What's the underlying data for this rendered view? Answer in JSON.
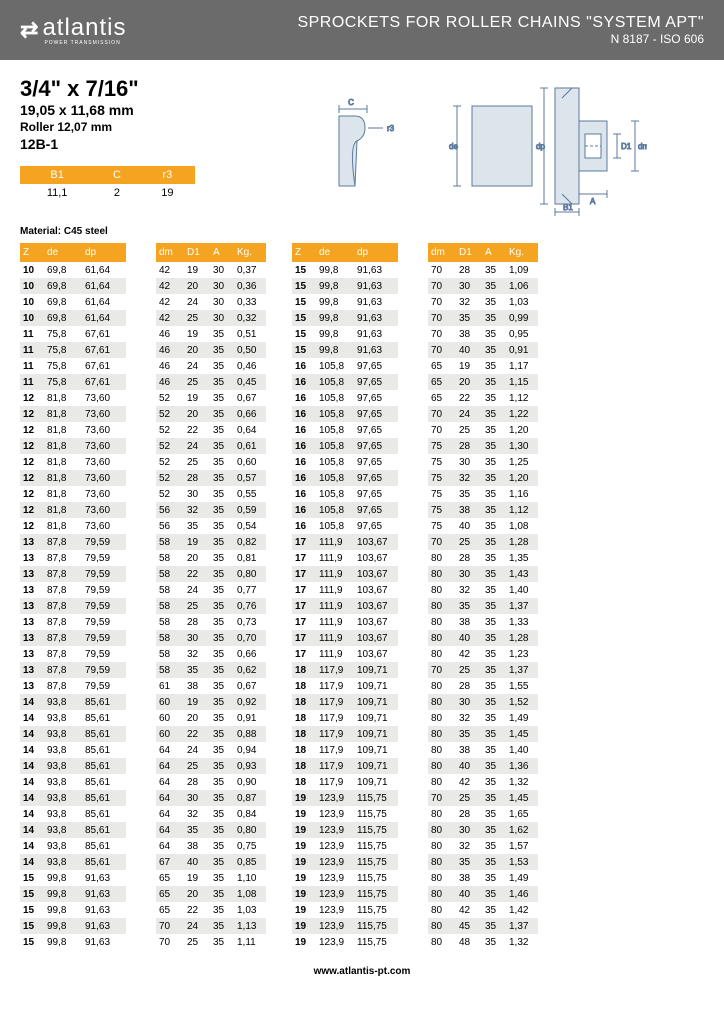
{
  "header": {
    "brand": "atlantis",
    "brand_sub": "POWER TRANSMISSION",
    "title": "SPROCKETS FOR ROLLER CHAINS \"SYSTEM APT\"",
    "subtitle": "N 8187 - ISO 606"
  },
  "specs": {
    "main": "3/4\" x 7/16\"",
    "sub": "19,05 x 11,68 mm",
    "roller": "Roller 12,07 mm",
    "code": "12B-1",
    "mini_headers": [
      "B1",
      "C",
      "r3"
    ],
    "mini_values": [
      "11,1",
      "2",
      "19"
    ],
    "material": "Material: C45 steel"
  },
  "dim_labels": {
    "c": "C",
    "r3": "r3",
    "de": "de",
    "dp": "dp",
    "d1": "D1",
    "dm": "dm",
    "b1": "B1",
    "a": "A"
  },
  "headers": [
    "Z",
    "de",
    "dp",
    "dm",
    "D1",
    "A",
    "Kg."
  ],
  "left": [
    [
      "10",
      "69,8",
      "61,64",
      "42",
      "19",
      "30",
      "0,37"
    ],
    [
      "10",
      "69,8",
      "61,64",
      "42",
      "20",
      "30",
      "0,36"
    ],
    [
      "10",
      "69,8",
      "61,64",
      "42",
      "24",
      "30",
      "0,33"
    ],
    [
      "10",
      "69,8",
      "61,64",
      "42",
      "25",
      "30",
      "0,32"
    ],
    [
      "11",
      "75,8",
      "67,61",
      "46",
      "19",
      "35",
      "0,51"
    ],
    [
      "11",
      "75,8",
      "67,61",
      "46",
      "20",
      "35",
      "0,50"
    ],
    [
      "11",
      "75,8",
      "67,61",
      "46",
      "24",
      "35",
      "0,46"
    ],
    [
      "11",
      "75,8",
      "67,61",
      "46",
      "25",
      "35",
      "0,45"
    ],
    [
      "12",
      "81,8",
      "73,60",
      "52",
      "19",
      "35",
      "0,67"
    ],
    [
      "12",
      "81,8",
      "73,60",
      "52",
      "20",
      "35",
      "0,66"
    ],
    [
      "12",
      "81,8",
      "73,60",
      "52",
      "22",
      "35",
      "0,64"
    ],
    [
      "12",
      "81,8",
      "73,60",
      "52",
      "24",
      "35",
      "0,61"
    ],
    [
      "12",
      "81,8",
      "73,60",
      "52",
      "25",
      "35",
      "0,60"
    ],
    [
      "12",
      "81,8",
      "73,60",
      "52",
      "28",
      "35",
      "0,57"
    ],
    [
      "12",
      "81,8",
      "73,60",
      "52",
      "30",
      "35",
      "0,55"
    ],
    [
      "12",
      "81,8",
      "73,60",
      "56",
      "32",
      "35",
      "0,59"
    ],
    [
      "12",
      "81,8",
      "73,60",
      "56",
      "35",
      "35",
      "0,54"
    ],
    [
      "13",
      "87,8",
      "79,59",
      "58",
      "19",
      "35",
      "0,82"
    ],
    [
      "13",
      "87,8",
      "79,59",
      "58",
      "20",
      "35",
      "0,81"
    ],
    [
      "13",
      "87,8",
      "79,59",
      "58",
      "22",
      "35",
      "0,80"
    ],
    [
      "13",
      "87,8",
      "79,59",
      "58",
      "24",
      "35",
      "0,77"
    ],
    [
      "13",
      "87,8",
      "79,59",
      "58",
      "25",
      "35",
      "0,76"
    ],
    [
      "13",
      "87,8",
      "79,59",
      "58",
      "28",
      "35",
      "0,73"
    ],
    [
      "13",
      "87,8",
      "79,59",
      "58",
      "30",
      "35",
      "0,70"
    ],
    [
      "13",
      "87,8",
      "79,59",
      "58",
      "32",
      "35",
      "0,66"
    ],
    [
      "13",
      "87,8",
      "79,59",
      "58",
      "35",
      "35",
      "0,62"
    ],
    [
      "13",
      "87,8",
      "79,59",
      "61",
      "38",
      "35",
      "0,67"
    ],
    [
      "14",
      "93,8",
      "85,61",
      "60",
      "19",
      "35",
      "0,92"
    ],
    [
      "14",
      "93,8",
      "85,61",
      "60",
      "20",
      "35",
      "0,91"
    ],
    [
      "14",
      "93,8",
      "85,61",
      "60",
      "22",
      "35",
      "0,88"
    ],
    [
      "14",
      "93,8",
      "85,61",
      "64",
      "24",
      "35",
      "0,94"
    ],
    [
      "14",
      "93,8",
      "85,61",
      "64",
      "25",
      "35",
      "0,93"
    ],
    [
      "14",
      "93,8",
      "85,61",
      "64",
      "28",
      "35",
      "0,90"
    ],
    [
      "14",
      "93,8",
      "85,61",
      "64",
      "30",
      "35",
      "0,87"
    ],
    [
      "14",
      "93,8",
      "85,61",
      "64",
      "32",
      "35",
      "0,84"
    ],
    [
      "14",
      "93,8",
      "85,61",
      "64",
      "35",
      "35",
      "0,80"
    ],
    [
      "14",
      "93,8",
      "85,61",
      "64",
      "38",
      "35",
      "0,75"
    ],
    [
      "14",
      "93,8",
      "85,61",
      "67",
      "40",
      "35",
      "0,85"
    ],
    [
      "15",
      "99,8",
      "91,63",
      "65",
      "19",
      "35",
      "1,10"
    ],
    [
      "15",
      "99,8",
      "91,63",
      "65",
      "20",
      "35",
      "1,08"
    ],
    [
      "15",
      "99,8",
      "91,63",
      "65",
      "22",
      "35",
      "1,03"
    ],
    [
      "15",
      "99,8",
      "91,63",
      "70",
      "24",
      "35",
      "1,13"
    ],
    [
      "15",
      "99,8",
      "91,63",
      "70",
      "25",
      "35",
      "1,11"
    ]
  ],
  "right": [
    [
      "15",
      "99,8",
      "91,63",
      "70",
      "28",
      "35",
      "1,09"
    ],
    [
      "15",
      "99,8",
      "91,63",
      "70",
      "30",
      "35",
      "1,06"
    ],
    [
      "15",
      "99,8",
      "91,63",
      "70",
      "32",
      "35",
      "1,03"
    ],
    [
      "15",
      "99,8",
      "91,63",
      "70",
      "35",
      "35",
      "0,99"
    ],
    [
      "15",
      "99,8",
      "91,63",
      "70",
      "38",
      "35",
      "0,95"
    ],
    [
      "15",
      "99,8",
      "91,63",
      "70",
      "40",
      "35",
      "0,91"
    ],
    [
      "16",
      "105,8",
      "97,65",
      "65",
      "19",
      "35",
      "1,17"
    ],
    [
      "16",
      "105,8",
      "97,65",
      "65",
      "20",
      "35",
      "1,15"
    ],
    [
      "16",
      "105,8",
      "97,65",
      "65",
      "22",
      "35",
      "1,12"
    ],
    [
      "16",
      "105,8",
      "97,65",
      "70",
      "24",
      "35",
      "1,22"
    ],
    [
      "16",
      "105,8",
      "97,65",
      "70",
      "25",
      "35",
      "1,20"
    ],
    [
      "16",
      "105,8",
      "97,65",
      "75",
      "28",
      "35",
      "1,30"
    ],
    [
      "16",
      "105,8",
      "97,65",
      "75",
      "30",
      "35",
      "1,25"
    ],
    [
      "16",
      "105,8",
      "97,65",
      "75",
      "32",
      "35",
      "1,20"
    ],
    [
      "16",
      "105,8",
      "97,65",
      "75",
      "35",
      "35",
      "1,16"
    ],
    [
      "16",
      "105,8",
      "97,65",
      "75",
      "38",
      "35",
      "1,12"
    ],
    [
      "16",
      "105,8",
      "97,65",
      "75",
      "40",
      "35",
      "1,08"
    ],
    [
      "17",
      "111,9",
      "103,67",
      "70",
      "25",
      "35",
      "1,28"
    ],
    [
      "17",
      "111,9",
      "103,67",
      "80",
      "28",
      "35",
      "1,35"
    ],
    [
      "17",
      "111,9",
      "103,67",
      "80",
      "30",
      "35",
      "1,43"
    ],
    [
      "17",
      "111,9",
      "103,67",
      "80",
      "32",
      "35",
      "1,40"
    ],
    [
      "17",
      "111,9",
      "103,67",
      "80",
      "35",
      "35",
      "1,37"
    ],
    [
      "17",
      "111,9",
      "103,67",
      "80",
      "38",
      "35",
      "1,33"
    ],
    [
      "17",
      "111,9",
      "103,67",
      "80",
      "40",
      "35",
      "1,28"
    ],
    [
      "17",
      "111,9",
      "103,67",
      "80",
      "42",
      "35",
      "1,23"
    ],
    [
      "18",
      "117,9",
      "109,71",
      "70",
      "25",
      "35",
      "1,37"
    ],
    [
      "18",
      "117,9",
      "109,71",
      "80",
      "28",
      "35",
      "1,55"
    ],
    [
      "18",
      "117,9",
      "109,71",
      "80",
      "30",
      "35",
      "1,52"
    ],
    [
      "18",
      "117,9",
      "109,71",
      "80",
      "32",
      "35",
      "1,49"
    ],
    [
      "18",
      "117,9",
      "109,71",
      "80",
      "35",
      "35",
      "1,45"
    ],
    [
      "18",
      "117,9",
      "109,71",
      "80",
      "38",
      "35",
      "1,40"
    ],
    [
      "18",
      "117,9",
      "109,71",
      "80",
      "40",
      "35",
      "1,36"
    ],
    [
      "18",
      "117,9",
      "109,71",
      "80",
      "42",
      "35",
      "1,32"
    ],
    [
      "19",
      "123,9",
      "115,75",
      "70",
      "25",
      "35",
      "1,45"
    ],
    [
      "19",
      "123,9",
      "115,75",
      "80",
      "28",
      "35",
      "1,65"
    ],
    [
      "19",
      "123,9",
      "115,75",
      "80",
      "30",
      "35",
      "1,62"
    ],
    [
      "19",
      "123,9",
      "115,75",
      "80",
      "32",
      "35",
      "1,57"
    ],
    [
      "19",
      "123,9",
      "115,75",
      "80",
      "35",
      "35",
      "1,53"
    ],
    [
      "19",
      "123,9",
      "115,75",
      "80",
      "38",
      "35",
      "1,49"
    ],
    [
      "19",
      "123,9",
      "115,75",
      "80",
      "40",
      "35",
      "1,46"
    ],
    [
      "19",
      "123,9",
      "115,75",
      "80",
      "42",
      "35",
      "1,42"
    ],
    [
      "19",
      "123,9",
      "115,75",
      "80",
      "45",
      "35",
      "1,37"
    ],
    [
      "19",
      "123,9",
      "115,75",
      "80",
      "48",
      "35",
      "1,32"
    ]
  ],
  "footer": "www.atlantis-pt.com"
}
